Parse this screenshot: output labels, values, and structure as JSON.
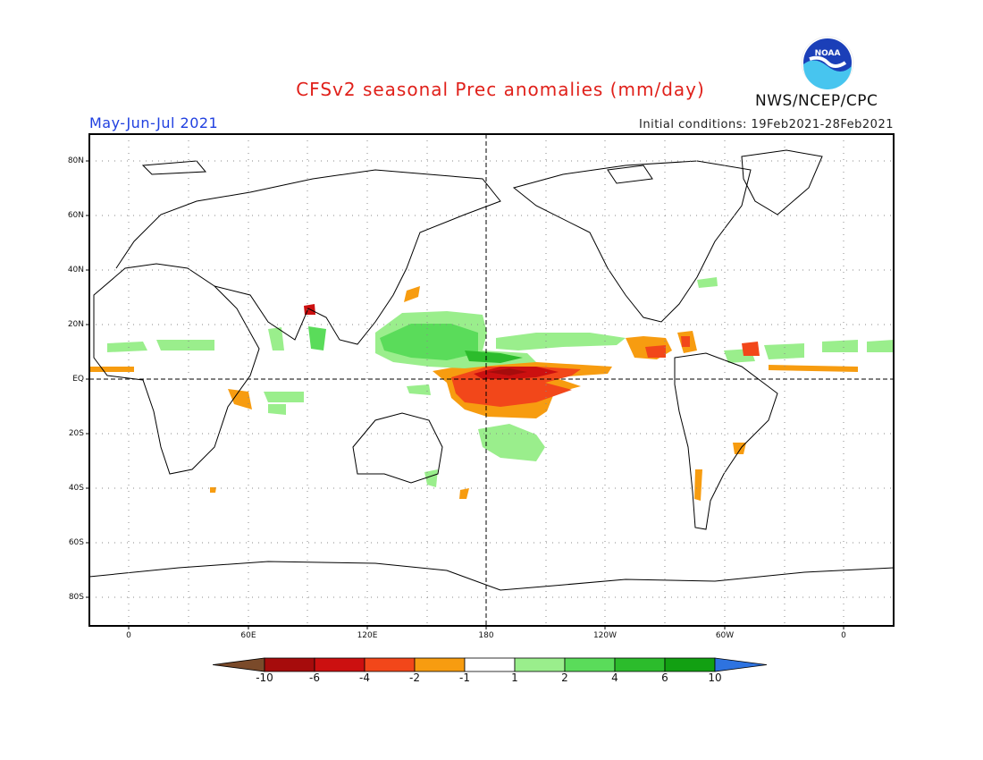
{
  "header": {
    "title": "CFSv2 seasonal Prec anomalies (mm/day)",
    "season": "May-Jun-Jul 2021",
    "initial_conditions": "Initial conditions: 19Feb2021-28Feb2021",
    "agency": "NWS/NCEP/CPC",
    "logo_text": "NOAA"
  },
  "map": {
    "lat_labels": [
      "80N",
      "60N",
      "40N",
      "20N",
      "EQ",
      "20S",
      "40S",
      "60S",
      "80S"
    ],
    "lon_labels": [
      "0",
      "60E",
      "120E",
      "180",
      "120W",
      "60W",
      "0"
    ],
    "reference_lines": [
      "EQ",
      "180"
    ],
    "grid": "dotted"
  },
  "colorbar": {
    "labels": [
      "-10",
      "-6",
      "-4",
      "-2",
      "-1",
      "1",
      "2",
      "4",
      "6",
      "10"
    ],
    "colors": [
      "#7a4a2a",
      "#a60c0c",
      "#cc1010",
      "#f2471a",
      "#f79c10",
      "#ffffff",
      "#9aee8c",
      "#5adc5a",
      "#2cbc2c",
      "#12a012",
      "#2e73e0"
    ]
  },
  "anomalies": [
    {
      "region": "Equatorial central Pacific",
      "category": "-4 to -6",
      "color": "#cc1010"
    },
    {
      "region": "Central Pacific band",
      "category": "-2 to -4",
      "color": "#f2471a"
    },
    {
      "region": "Central Pacific outer band",
      "category": "-1 to -2",
      "color": "#f79c10"
    },
    {
      "region": "Western Pacific / Philippine Sea",
      "category": "1 to 4",
      "color": "#5adc5a"
    },
    {
      "region": "Central Pacific ITCZ",
      "category": "1 to 2",
      "color": "#9aee8c"
    },
    {
      "region": "Central America / Caribbean",
      "category": "-2 to -6",
      "color": "#f2471a"
    },
    {
      "region": "Tropical Atlantic",
      "category": "1 to 2",
      "color": "#9aee8c"
    },
    {
      "region": "South Pacific Convergence Zone",
      "category": "1 to 2",
      "color": "#9aee8c"
    }
  ]
}
